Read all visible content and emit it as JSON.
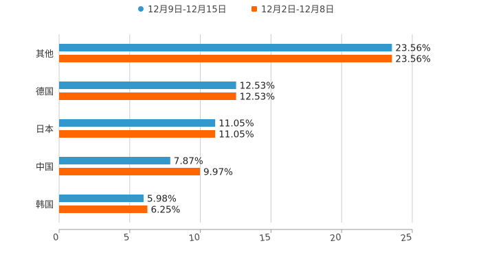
{
  "chart_data": {
    "type": "bar",
    "orientation": "horizontal",
    "categories": [
      "其他",
      "德国",
      "日本",
      "中国",
      "韩国"
    ],
    "series": [
      {
        "name": "12月9日-12月15日",
        "color": "#3399cc",
        "values": [
          23.56,
          12.53,
          11.05,
          7.87,
          5.98
        ],
        "labels": [
          "23.56%",
          "12.53%",
          "11.05%",
          "7.87%",
          "5.98%"
        ]
      },
      {
        "name": "12月2日-12月8日",
        "color": "#ff6600",
        "values": [
          23.56,
          12.53,
          11.05,
          9.97,
          6.25
        ],
        "labels": [
          "23.56%",
          "12.53%",
          "11.05%",
          "9.97%",
          "6.25%"
        ]
      }
    ],
    "xlim": [
      0,
      25
    ],
    "xticks": [
      "0",
      "5",
      "10",
      "15",
      "20",
      "25"
    ],
    "grid": true,
    "legend": "top-center",
    "title": "",
    "xlabel": "",
    "ylabel": ""
  }
}
